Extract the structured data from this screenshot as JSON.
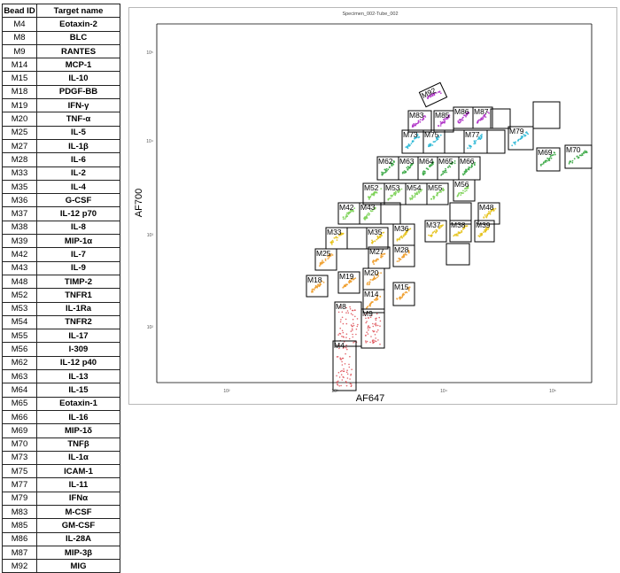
{
  "table": {
    "headers": {
      "bead_id": "Bead ID",
      "target_name": "Target name"
    },
    "rows": [
      {
        "id": "M4",
        "name": "Eotaxin-2"
      },
      {
        "id": "M8",
        "name": "BLC"
      },
      {
        "id": "M9",
        "name": "RANTES"
      },
      {
        "id": "M14",
        "name": "MCP-1"
      },
      {
        "id": "M15",
        "name": "IL-10"
      },
      {
        "id": "M18",
        "name": "PDGF-BB"
      },
      {
        "id": "M19",
        "name": "IFN-γ"
      },
      {
        "id": "M20",
        "name": "TNF-α"
      },
      {
        "id": "M25",
        "name": "IL-5"
      },
      {
        "id": "M27",
        "name": "IL-1β"
      },
      {
        "id": "M28",
        "name": "IL-6"
      },
      {
        "id": "M33",
        "name": "IL-2"
      },
      {
        "id": "M35",
        "name": "IL-4"
      },
      {
        "id": "M36",
        "name": "G-CSF"
      },
      {
        "id": "M37",
        "name": "IL-12 p70"
      },
      {
        "id": "M38",
        "name": "IL-8"
      },
      {
        "id": "M39",
        "name": "MIP-1α"
      },
      {
        "id": "M42",
        "name": "IL-7"
      },
      {
        "id": "M43",
        "name": "IL-9"
      },
      {
        "id": "M48",
        "name": "TIMP-2"
      },
      {
        "id": "M52",
        "name": "TNFR1"
      },
      {
        "id": "M53",
        "name": "IL-1Ra"
      },
      {
        "id": "M54",
        "name": "TNFR2"
      },
      {
        "id": "M55",
        "name": "IL-17"
      },
      {
        "id": "M56",
        "name": "I-309"
      },
      {
        "id": "M62",
        "name": "IL-12 p40"
      },
      {
        "id": "M63",
        "name": "IL-13"
      },
      {
        "id": "M64",
        "name": "IL-15"
      },
      {
        "id": "M65",
        "name": "Eotaxin-1"
      },
      {
        "id": "M66",
        "name": "IL-16"
      },
      {
        "id": "M69",
        "name": "MIP-1δ"
      },
      {
        "id": "M70",
        "name": "TNFβ"
      },
      {
        "id": "M73",
        "name": "IL-1α"
      },
      {
        "id": "M75",
        "name": "ICAM-1"
      },
      {
        "id": "M77",
        "name": "IL-11"
      },
      {
        "id": "M79",
        "name": "IFNα"
      },
      {
        "id": "M83",
        "name": "M-CSF"
      },
      {
        "id": "M85",
        "name": "GM-CSF"
      },
      {
        "id": "M86",
        "name": "IL-28A"
      },
      {
        "id": "M87",
        "name": "MIP-3β"
      },
      {
        "id": "M92",
        "name": "MIG"
      }
    ]
  },
  "plot": {
    "title": "Specimen_002-Tube_002",
    "xlabel": "AF647",
    "ylabel": "AF700",
    "x_ticks": [
      "10²",
      "10³",
      "10⁴",
      "10⁵"
    ],
    "y_ticks": [
      "10²",
      "10³",
      "10⁴",
      "10⁵"
    ],
    "gate_labels": [
      "M4",
      "M8",
      "M9",
      "M14",
      "M15",
      "M18",
      "M19",
      "M20",
      "M25",
      "M27",
      "M28",
      "M33",
      "M35",
      "M36",
      "M37",
      "M38",
      "M39",
      "M42",
      "M43",
      "M48",
      "M52",
      "M53",
      "M54",
      "M55",
      "M56",
      "M62",
      "M63",
      "M64",
      "M65",
      "M66",
      "M69",
      "M70",
      "M73",
      "M75",
      "M77",
      "M79",
      "M83",
      "M85",
      "M86",
      "M87",
      "M92"
    ],
    "colors": {
      "red": "#d9363e",
      "orange": "#f0a030",
      "yellow": "#e6c21a",
      "green": "#3aa845",
      "lime": "#7ed35a",
      "cyan": "#2fb9d6",
      "magenta": "#b035c8",
      "frame": "#b8b8b8"
    }
  }
}
